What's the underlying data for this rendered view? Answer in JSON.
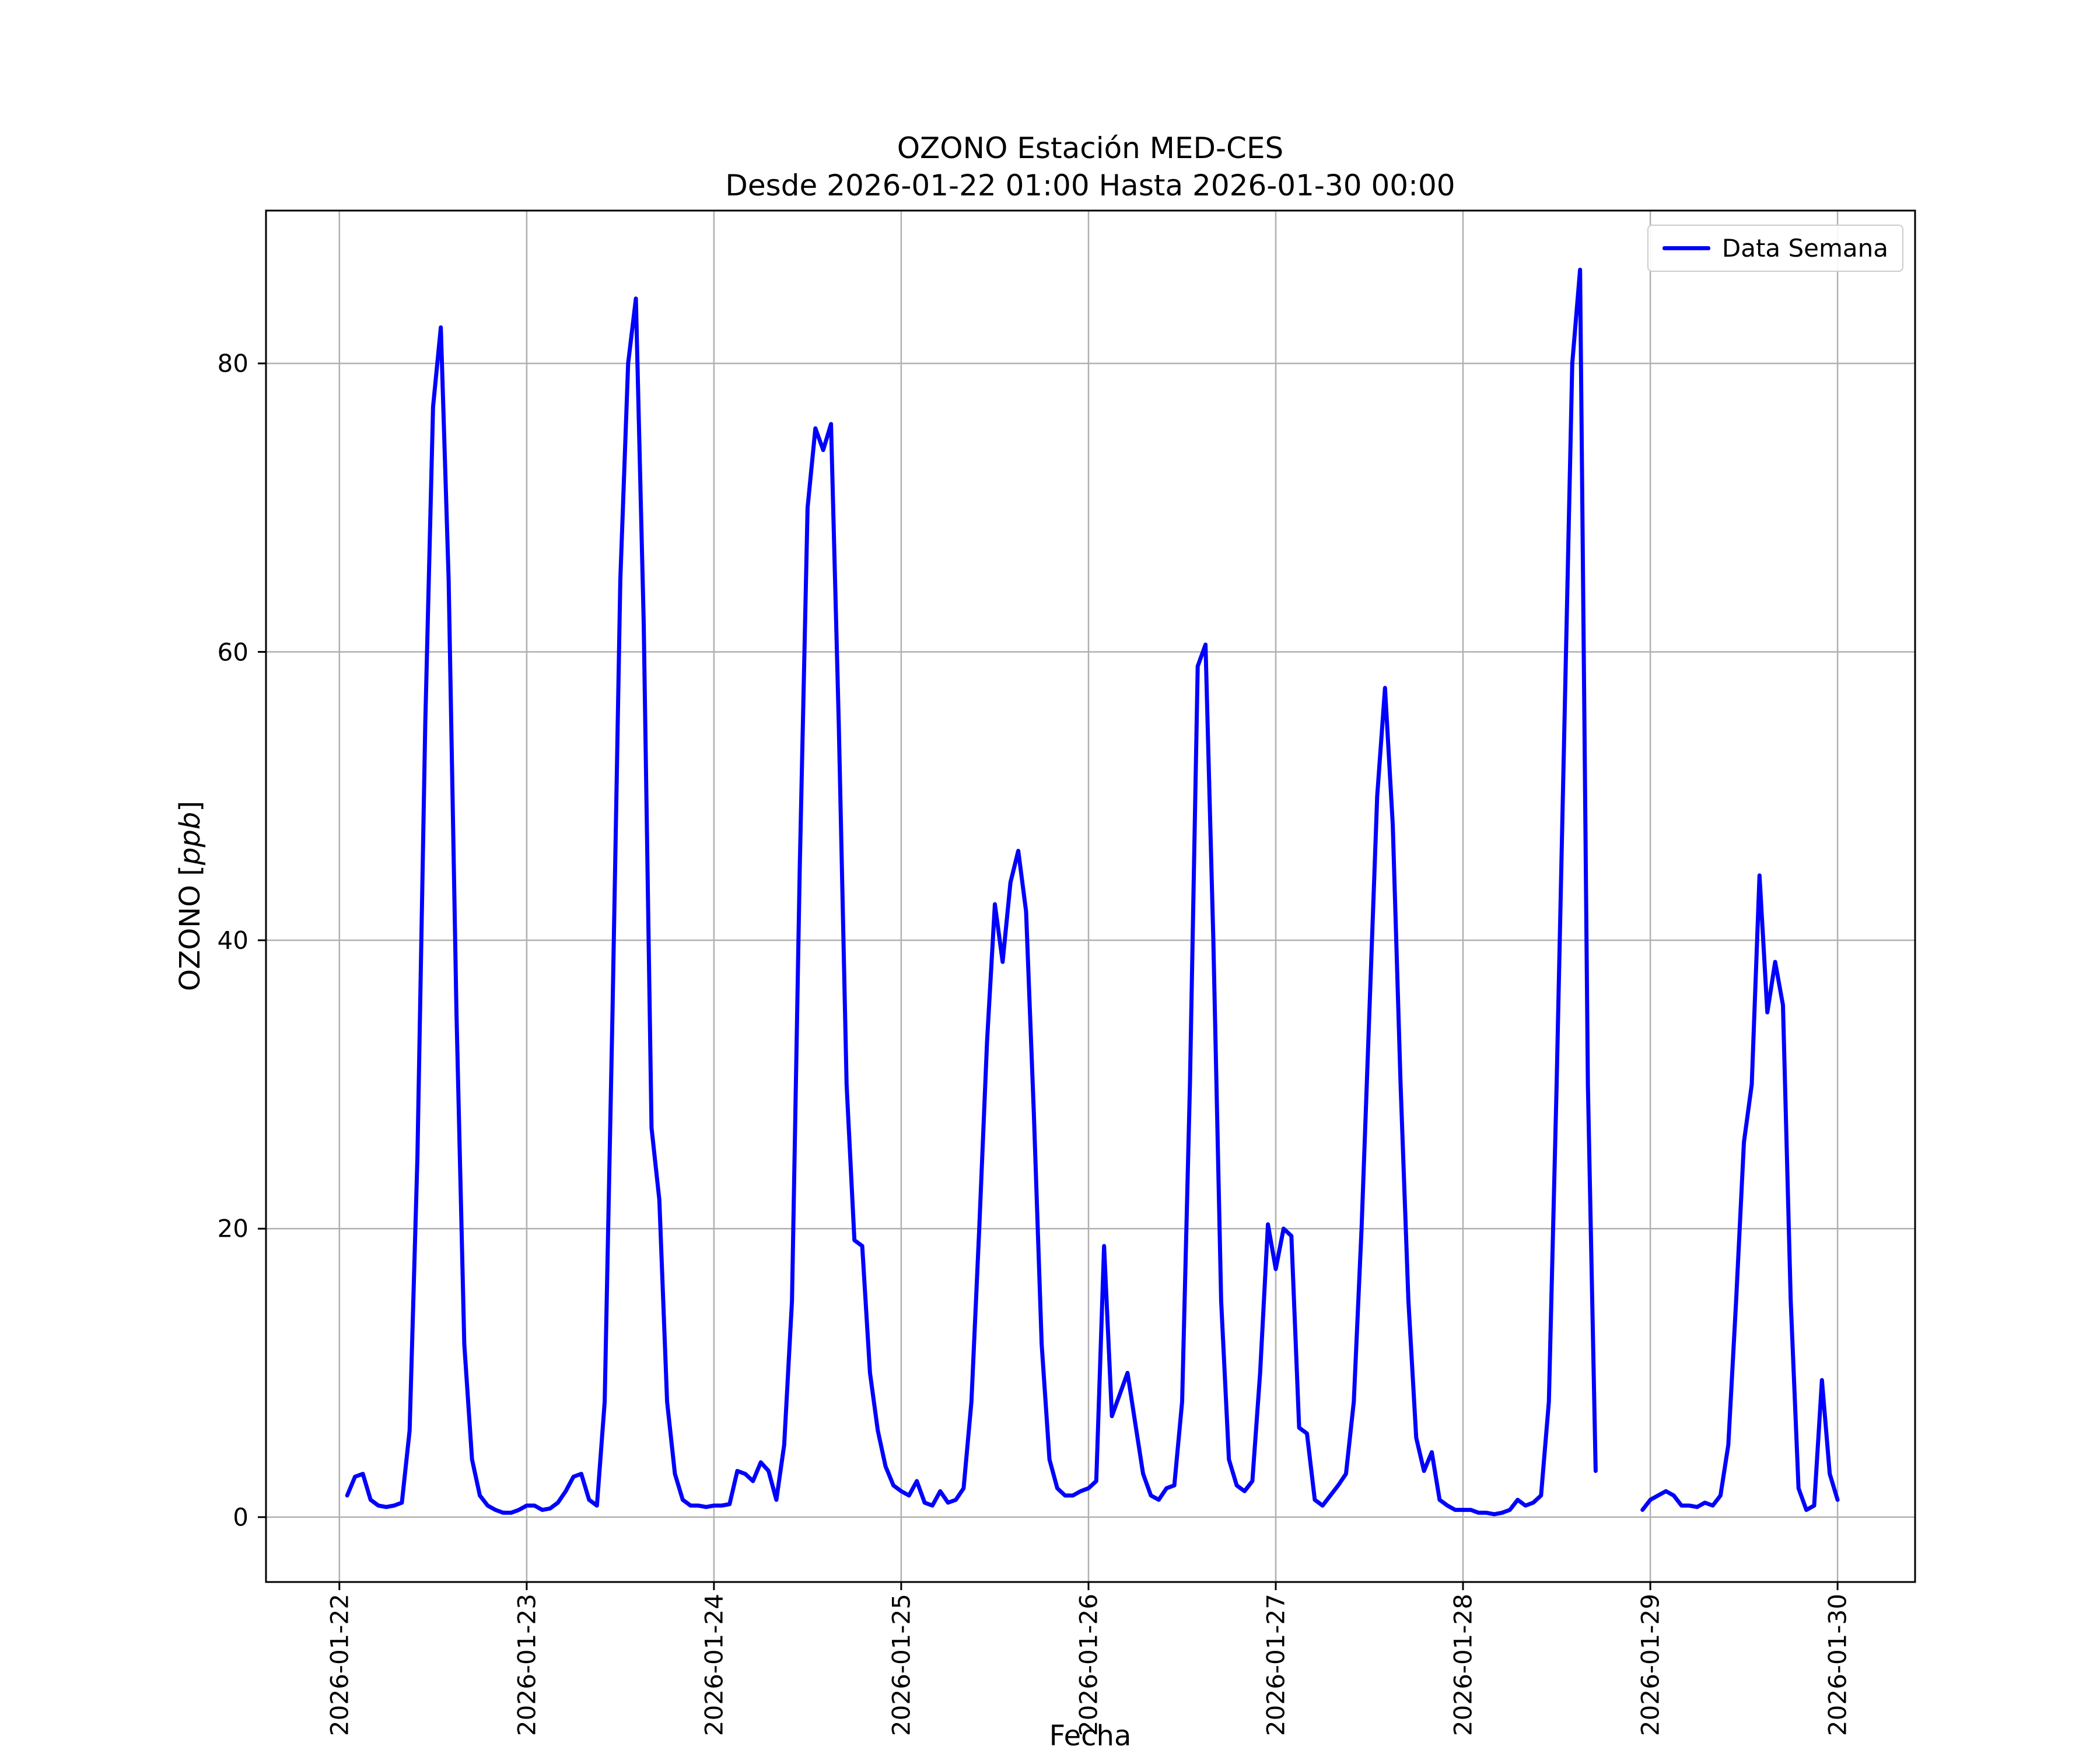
{
  "figure": {
    "title_line1": "OZONO Estación MED-CES",
    "title_line2": "Desde 2026-01-22 01:00 Hasta 2026-01-30 00:00",
    "xlabel": "Fecha",
    "ylabel_prefix": "OZONO [",
    "ylabel_italic": "ppb",
    "ylabel_suffix": "]"
  },
  "legend": {
    "entries": [
      {
        "label": "Data Semana",
        "color": "#0000ff"
      }
    ]
  },
  "chart_data": {
    "type": "line",
    "title": "OZONO Estación MED-CES\nDesde 2026-01-22 01:00 Hasta 2026-01-30 00:00",
    "xlabel": "Fecha",
    "ylabel": "OZONO [ppb]",
    "legend_position": "upper right",
    "grid": true,
    "x_start": "2026-01-22 01:00",
    "x_interval_hours": 1,
    "x_tick_labels": [
      "2026-01-22",
      "2026-01-23",
      "2026-01-24",
      "2026-01-25",
      "2026-01-26",
      "2026-01-27",
      "2026-01-28",
      "2026-01-29",
      "2026-01-30"
    ],
    "y_ticks": [
      0,
      20,
      40,
      60,
      80
    ],
    "xlim_days": [
      -0.392,
      8.414
    ],
    "ylim": [
      -4.5,
      90.6
    ],
    "series": [
      {
        "name": "Data Semana",
        "color": "#0000ff",
        "values": [
          1.5,
          2.8,
          3.0,
          1.2,
          0.8,
          0.7,
          0.8,
          1.0,
          6.0,
          25.0,
          55.0,
          77.0,
          82.5,
          65.0,
          35.0,
          12.0,
          4.0,
          1.5,
          0.8,
          0.5,
          0.3,
          0.3,
          0.5,
          0.8,
          0.8,
          0.5,
          0.6,
          1.0,
          1.8,
          2.8,
          3.0,
          1.2,
          0.8,
          8.0,
          35.0,
          65.0,
          80.0,
          84.5,
          62.0,
          27.0,
          22.0,
          8.0,
          3.0,
          1.2,
          0.8,
          0.8,
          0.7,
          0.8,
          0.8,
          0.9,
          3.2,
          3.0,
          2.5,
          3.8,
          3.2,
          1.2,
          5.0,
          15.0,
          45.0,
          70.0,
          75.5,
          74.0,
          75.8,
          55.0,
          30.0,
          19.2,
          18.8,
          10.0,
          6.0,
          3.5,
          2.2,
          1.8,
          1.5,
          2.5,
          1.0,
          0.8,
          1.8,
          1.0,
          1.2,
          2.0,
          8.0,
          20.0,
          33.0,
          42.5,
          38.5,
          44.0,
          46.2,
          42.0,
          28.0,
          12.0,
          4.0,
          2.0,
          1.5,
          1.5,
          1.8,
          2.0,
          2.5,
          18.8,
          7.0,
          8.5,
          10.0,
          6.5,
          3.0,
          1.5,
          1.2,
          2.0,
          2.2,
          8.0,
          30.0,
          59.0,
          60.5,
          40.0,
          15.0,
          4.0,
          2.2,
          1.8,
          2.5,
          10.0,
          20.3,
          17.2,
          20.0,
          19.5,
          6.2,
          5.8,
          1.2,
          0.8,
          1.5,
          2.2,
          3.0,
          8.0,
          20.0,
          35.0,
          50.0,
          57.5,
          48.0,
          30.0,
          15.0,
          5.5,
          3.2,
          4.5,
          1.2,
          0.8,
          0.5,
          0.5,
          0.5,
          0.3,
          0.3,
          0.2,
          0.3,
          0.5,
          1.2,
          0.8,
          1.0,
          1.5,
          8.0,
          30.0,
          55.0,
          80.0,
          86.5,
          30.0,
          3.2,
          null,
          null,
          null,
          null,
          null,
          0.5,
          1.2,
          1.5,
          1.8,
          1.5,
          0.8,
          0.8,
          0.7,
          1.0,
          0.8,
          1.5,
          5.0,
          15.0,
          26.0,
          30.0,
          44.5,
          35.0,
          38.5,
          35.5,
          15.0,
          2.0,
          0.5,
          0.8,
          9.5,
          3.0,
          1.2
        ]
      }
    ]
  }
}
